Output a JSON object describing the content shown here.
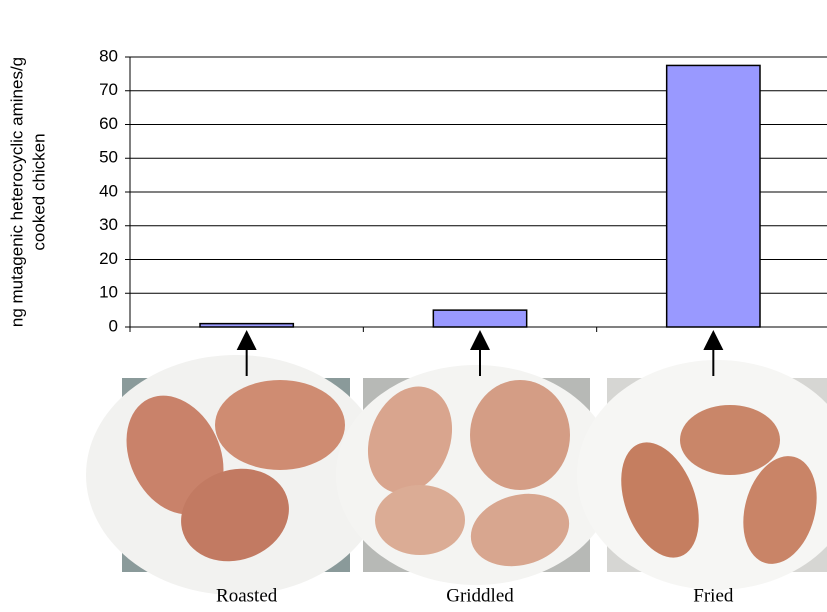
{
  "chart_data": {
    "type": "bar",
    "y_label": [
      "ng mutagenic heterocyclic amines/g",
      "cooked chicken"
    ],
    "categories": [
      "Roasted",
      "Griddled",
      "Fried"
    ],
    "values": [
      1,
      5,
      77.5
    ],
    "color": "#9999ff",
    "ylim": [
      0,
      80
    ],
    "yticks": [
      0,
      10,
      20,
      30,
      40,
      50,
      60,
      70,
      80
    ],
    "grid": true
  }
}
